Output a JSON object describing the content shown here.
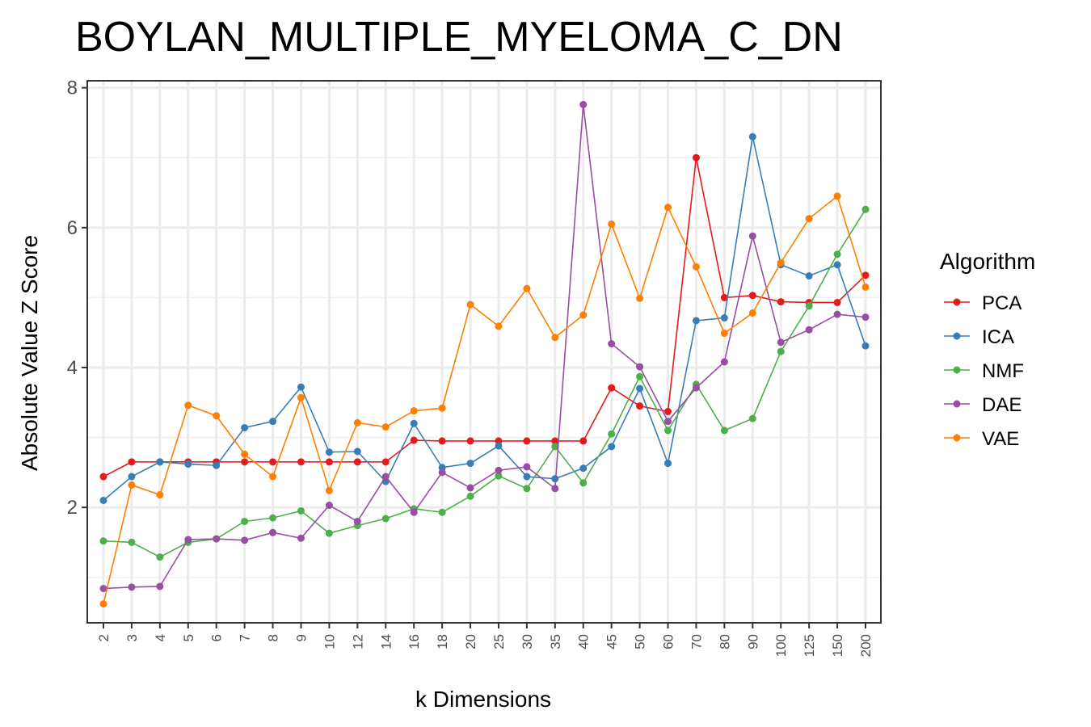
{
  "chart_data": {
    "type": "line",
    "title": "BOYLAN_MULTIPLE_MYELOMA_C_DN",
    "xlabel": "k Dimensions",
    "ylabel": "Absolute Value Z Score",
    "categories": [
      "2",
      "3",
      "4",
      "5",
      "6",
      "7",
      "8",
      "9",
      "10",
      "12",
      "14",
      "16",
      "18",
      "20",
      "25",
      "30",
      "35",
      "40",
      "45",
      "50",
      "60",
      "70",
      "80",
      "90",
      "100",
      "125",
      "150",
      "200"
    ],
    "yticks": [
      "2",
      "4",
      "6",
      "8"
    ],
    "ylim": [
      0.35,
      8.1
    ],
    "grid": true,
    "legend": {
      "title": "Algorithm",
      "position": "right"
    },
    "series": [
      {
        "name": "PCA",
        "color": "#e41a1c",
        "values": [
          2.44,
          2.65,
          2.65,
          2.65,
          2.65,
          2.65,
          2.65,
          2.65,
          2.65,
          2.65,
          2.65,
          2.96,
          2.95,
          2.95,
          2.95,
          2.95,
          2.95,
          2.95,
          3.71,
          3.45,
          3.37,
          7.0,
          5.0,
          5.03,
          4.94,
          4.93,
          4.93,
          5.32
        ]
      },
      {
        "name": "ICA",
        "color": "#377eb8",
        "values": [
          2.1,
          2.44,
          2.65,
          2.62,
          2.6,
          3.14,
          3.23,
          3.72,
          2.79,
          2.8,
          2.37,
          3.2,
          2.57,
          2.63,
          2.88,
          2.44,
          2.41,
          2.56,
          2.87,
          3.7,
          2.63,
          4.67,
          4.71,
          7.3,
          5.47,
          5.31,
          5.47,
          4.31
        ]
      },
      {
        "name": "NMF",
        "color": "#4daf4a",
        "values": [
          1.52,
          1.5,
          1.29,
          1.5,
          1.55,
          1.8,
          1.85,
          1.95,
          1.63,
          1.74,
          1.84,
          1.98,
          1.93,
          2.16,
          2.45,
          2.27,
          2.87,
          2.35,
          3.05,
          3.87,
          3.1,
          3.76,
          3.1,
          3.27,
          4.23,
          4.88,
          5.62,
          6.26
        ]
      },
      {
        "name": "DAE",
        "color": "#984ea3",
        "values": [
          0.84,
          0.86,
          0.87,
          1.54,
          1.55,
          1.53,
          1.64,
          1.56,
          2.03,
          1.8,
          2.44,
          1.93,
          2.5,
          2.28,
          2.53,
          2.58,
          2.27,
          7.76,
          4.34,
          4.01,
          3.23,
          3.71,
          4.08,
          5.88,
          4.36,
          4.54,
          4.76,
          4.72
        ]
      },
      {
        "name": "VAE",
        "color": "#ff7f00",
        "values": [
          0.62,
          2.32,
          2.18,
          3.46,
          3.31,
          2.76,
          2.44,
          3.57,
          2.24,
          3.21,
          3.15,
          3.38,
          3.42,
          4.9,
          4.59,
          5.13,
          4.43,
          4.75,
          6.05,
          4.99,
          6.29,
          5.44,
          4.49,
          4.78,
          5.5,
          6.13,
          6.45,
          5.15
        ]
      }
    ]
  }
}
